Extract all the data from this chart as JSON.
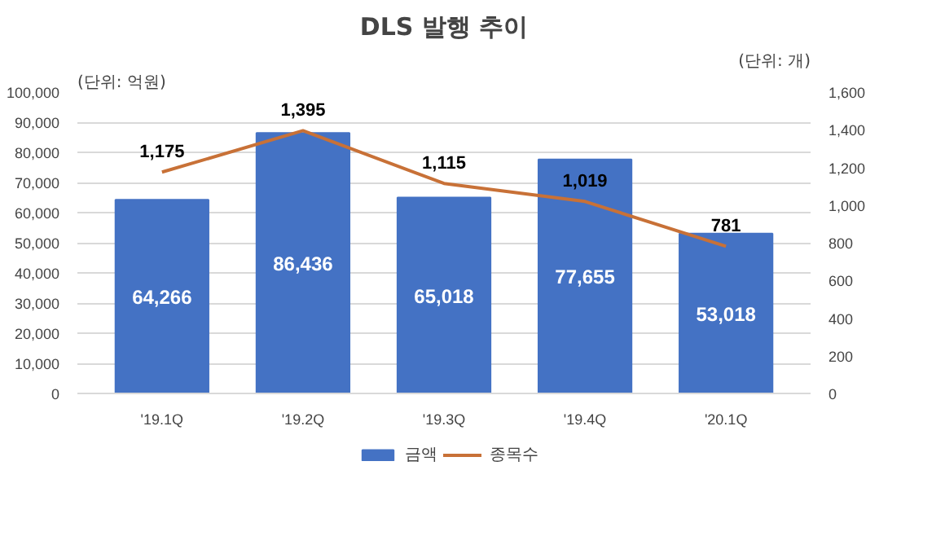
{
  "chart_data": {
    "type": "bar",
    "title": "DLS 발행 추이",
    "categories": [
      "'19.1Q",
      "'19.2Q",
      "'19.3Q",
      "'19.4Q",
      "'20.1Q"
    ],
    "series": [
      {
        "name": "금액",
        "type": "bar",
        "color": "#4472c4",
        "values": [
          64266,
          86436,
          65018,
          77655,
          53018
        ],
        "value_labels": [
          "64,266",
          "86,436",
          "65,018",
          "77,655",
          "53,018"
        ]
      },
      {
        "name": "종목수",
        "type": "line",
        "color": "#c87137",
        "axis": "y2",
        "values": [
          1175,
          1395,
          1115,
          1019,
          781
        ],
        "value_labels": [
          "1,175",
          "1,395",
          "1,115",
          "1,019",
          "781"
        ]
      }
    ],
    "ylim": [
      0,
      100000
    ],
    "yticks": [
      {
        "value": 0,
        "label": "0"
      },
      {
        "value": 10000,
        "label": "10,000"
      },
      {
        "value": 20000,
        "label": "20,000"
      },
      {
        "value": 30000,
        "label": "30,000"
      },
      {
        "value": 40000,
        "label": "40,000"
      },
      {
        "value": 50000,
        "label": "50,000"
      },
      {
        "value": 60000,
        "label": "60,000"
      },
      {
        "value": 70000,
        "label": "70,000"
      },
      {
        "value": 80000,
        "label": "80,000"
      },
      {
        "value": 90000,
        "label": "90,000"
      },
      {
        "value": 100000,
        "label": "100,000"
      }
    ],
    "y2lim": [
      0,
      1600
    ],
    "y2ticks": [
      {
        "value": 0,
        "label": "0"
      },
      {
        "value": 200,
        "label": "200"
      },
      {
        "value": 400,
        "label": "400"
      },
      {
        "value": 600,
        "label": "600"
      },
      {
        "value": 800,
        "label": "800"
      },
      {
        "value": 1000,
        "label": "1,000"
      },
      {
        "value": 1200,
        "label": "1,200"
      },
      {
        "value": 1400,
        "label": "1,400"
      },
      {
        "value": 1600,
        "label": "1,600"
      }
    ],
    "annotations": [
      "(단위: 억원)",
      "(단위: 개)"
    ],
    "data_labels": true,
    "grid": "y",
    "legend": "bottom"
  }
}
